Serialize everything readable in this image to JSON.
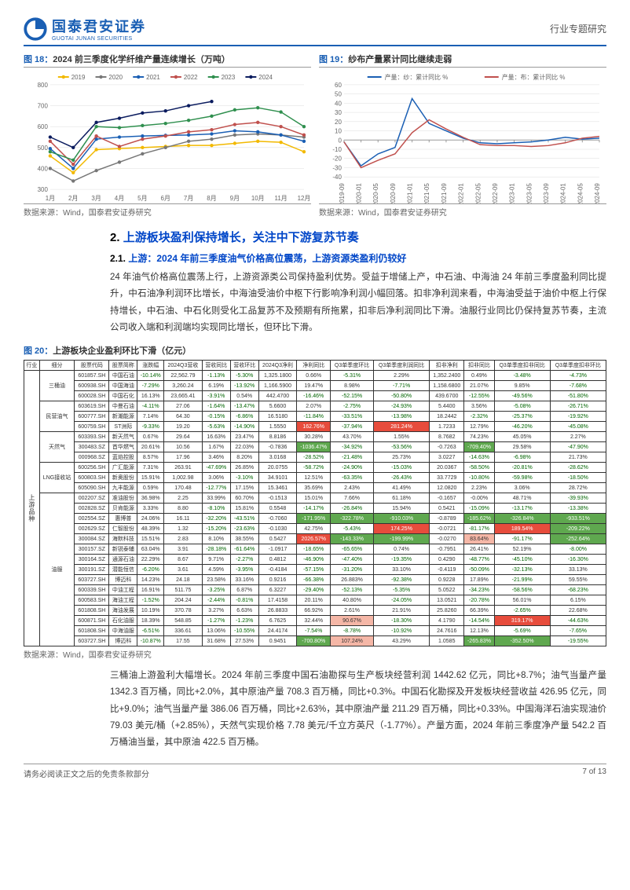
{
  "header": {
    "logo_cn": "国泰君安证券",
    "logo_en": "GUOTAI JUNAN SECURITIES",
    "right": "行业专题研究"
  },
  "fig18": {
    "title_prefix": "图 18：",
    "title": "2024 前三季度化学纤维产量连续增长（万吨）",
    "type": "line",
    "x_labels": [
      "1月",
      "2月",
      "3月",
      "4月",
      "5月",
      "6月",
      "7月",
      "8月",
      "9月",
      "10月",
      "11月",
      "12月"
    ],
    "y_min": 300,
    "y_max": 800,
    "y_step": 100,
    "series": [
      {
        "name": "2019",
        "color": "#f2b900",
        "values": [
          460,
          380,
          490,
          495,
          500,
          505,
          510,
          510,
          520,
          530,
          525,
          480
        ]
      },
      {
        "name": "2020",
        "color": "#777777",
        "values": [
          400,
          340,
          390,
          430,
          470,
          500,
          530,
          540,
          560,
          565,
          560,
          550
        ]
      },
      {
        "name": "2021",
        "color": "#1a5fb4",
        "values": [
          495,
          400,
          540,
          550,
          555,
          558,
          560,
          565,
          580,
          575,
          560,
          530
        ]
      },
      {
        "name": "2022",
        "color": "#c0504d",
        "values": [
          530,
          420,
          555,
          505,
          540,
          555,
          575,
          585,
          610,
          620,
          600,
          560
        ]
      },
      {
        "name": "2023",
        "color": "#2f8f4e",
        "values": [
          480,
          440,
          600,
          595,
          605,
          615,
          630,
          650,
          680,
          690,
          670,
          600
        ]
      },
      {
        "name": "2024",
        "color": "#0a1b5e",
        "values": [
          550,
          500,
          620,
          640,
          665,
          675,
          700,
          720,
          null,
          null,
          null,
          null
        ]
      }
    ],
    "source": "数据来源：Wind，国泰君安证券研究"
  },
  "fig19": {
    "title_prefix": "图 19：",
    "title": "纱布产量累计同比继续走弱",
    "type": "line",
    "x_labels": [
      "2019-09",
      "2020-01",
      "2020-05",
      "2020-09",
      "2021-01",
      "2021-05",
      "2021-09",
      "2022-01",
      "2022-05",
      "2022-09",
      "2023-01",
      "2023-05",
      "2023-09",
      "2024-01",
      "2024-05",
      "2024-09"
    ],
    "y_min": -40,
    "y_max": 60,
    "y_step": 10,
    "series": [
      {
        "name": "产量：纱：累计同比 %",
        "color": "#1a5fb4",
        "values": [
          -2,
          -28,
          -15,
          -8,
          45,
          18,
          10,
          2,
          -3,
          -4,
          -3,
          -2,
          0,
          3,
          1,
          2
        ]
      },
      {
        "name": "产量：布：累计同比 %",
        "color": "#c0504d",
        "values": [
          -2,
          -30,
          -22,
          -15,
          8,
          22,
          12,
          3,
          -5,
          -6,
          -6,
          -7,
          -6,
          -3,
          2,
          4
        ]
      }
    ],
    "source": "数据来源：Wind，国泰君安证券研究"
  },
  "section2": {
    "num": "2.",
    "title": "上游板块盈利保持增长，关注中下游复苏节奏"
  },
  "section21": {
    "num": "2.1.",
    "title": "上游：2024 年前三季度油气价格高位震荡，上游资源类盈利仍较好"
  },
  "para1": "24 年油气价格高位震荡上行，上游资源类公司保持盈利优势。受益于增储上产，中石油、中海油 24 年前三季度盈利同比提升，中石油净利润环比增长，中海油受油价中枢下行影响净利润小幅回落。扣非净利润来看，中海油受益于油价中枢上行保持增长，中石油、中石化则受化工品复苏不及预期有所拖累，扣非后净利润同比下滑。油服行业同比仍保持复苏节奏，主流公司收入端和利润端均实现同比增长，但环比下滑。",
  "fig20": {
    "title_prefix": "图 20：",
    "title": "上游板块企业盈利环比下滑（亿元）",
    "source": "数据来源：Wind，国泰君安证券研究",
    "columns": [
      "行业",
      "细分",
      "股票代码",
      "股票简称",
      "涨跌幅",
      "2024Q3营收",
      "营收同比",
      "营收环比",
      "2024Q3净利",
      "净利同比",
      "Q3单季度环比",
      "Q3单季度利润同比",
      "扣非净利",
      "扣非同比",
      "Q3单季度扣非同比",
      "Q3单季度扣非环比"
    ],
    "group_label": "上游品种",
    "subgroups": [
      {
        "name": "三桶油",
        "rows": [
          [
            "601857.SH",
            "中国石油",
            "-10.14%",
            "22,562.79",
            "-1.13%",
            "-5.30%",
            "1,325.1800",
            "0.66%",
            "-5.31%",
            "2.29%",
            "1,352.2400",
            "0.49%",
            "-3.48%",
            "-4.73%"
          ],
          [
            "600938.SH",
            "中国海油",
            "-7.29%",
            "3,260.24",
            "6.19%",
            "-13.92%",
            "1,166.5900",
            "19.47%",
            "8.98%",
            "-7.71%",
            "1,158.6800",
            "21.07%",
            "9.85%",
            "-7.68%"
          ],
          [
            "600028.SH",
            "中国石化",
            "16.13%",
            "23,665.41",
            "-3.91%",
            "0.54%",
            "442.4700",
            "-16.46%",
            "-52.15%",
            "-50.80%",
            "439.6700",
            "-12.55%",
            "-49.56%",
            "-51.80%"
          ]
        ]
      },
      {
        "name": "民营油气",
        "rows": [
          [
            "603619.SH",
            "中曼石油",
            "-4.11%",
            "27.06",
            "-1.64%",
            "-13.47%",
            "5.6600",
            "2.07%",
            "-2.75%",
            "-24.93%",
            "5.4400",
            "3.56%",
            "-5.08%",
            "-26.71%"
          ],
          [
            "600777.SH",
            "新潮能源",
            "7.14%",
            "64.30",
            "-0.15%",
            "-6.86%",
            "16.5180",
            "-11.84%",
            "-33.51%",
            "-13.98%",
            "18.2442",
            "-2.32%",
            "-25.37%",
            "-19.92%"
          ],
          [
            "600759.SH",
            "ST洲际",
            "-9.33%",
            "19.20",
            "-5.63%",
            "-14.90%",
            "1.5550",
            "162.76%",
            "-37.94%",
            "281.24%",
            "1.7233",
            "12.79%",
            "-46.20%",
            "-45.08%"
          ]
        ]
      },
      {
        "name": "天然气",
        "rows": [
          [
            "603393.SH",
            "新天然气",
            "0.67%",
            "29.64",
            "16.63%",
            "23.47%",
            "8.8186",
            "30.28%",
            "43.70%",
            "1.55%",
            "8.7682",
            "74.23%",
            "45.05%",
            "2.27%"
          ],
          [
            "300483.SZ",
            "首华燃气",
            "20.61%",
            "10.56",
            "1.67%",
            "22.03%",
            "-0.7836",
            "-1036.47%",
            "-34.92%",
            "-53.56%",
            "-0.7263",
            "-709.40%",
            "29.58%",
            "-47.90%"
          ],
          [
            "000968.SZ",
            "蓝焰控股",
            "8.57%",
            "17.96",
            "3.46%",
            "8.20%",
            "3.0168",
            "-28.52%",
            "-21.48%",
            "25.73%",
            "3.0227",
            "-14.63%",
            "-6.98%",
            "21.73%"
          ]
        ]
      },
      {
        "name": "LNG接收站",
        "rows": [
          [
            "600256.SH",
            "广汇能源",
            "7.31%",
            "263.91",
            "-47.69%",
            "26.85%",
            "20.0755",
            "-58.72%",
            "-24.90%",
            "-15.03%",
            "20.0367",
            "-58.50%",
            "-20.81%",
            "-28.62%"
          ],
          [
            "600803.SH",
            "新奥股份",
            "15.91%",
            "1,002.98",
            "3.06%",
            "-3.10%",
            "34.9101",
            "12.51%",
            "-63.35%",
            "-26.43%",
            "33.7729",
            "-10.80%",
            "-59.98%",
            "-18.50%"
          ],
          [
            "605090.SH",
            "九丰能源",
            "0.59%",
            "170.48",
            "-12.77%",
            "17.15%",
            "15.3461",
            "35.69%",
            "2.43%",
            "41.49%",
            "12.0820",
            "2.23%",
            "3.06%",
            "28.72%"
          ]
        ]
      },
      {
        "name": "油服",
        "rows": [
          [
            "002207.SZ",
            "准油股份",
            "36.98%",
            "2.25",
            "33.99%",
            "60.70%",
            "-0.1513",
            "15.01%",
            "7.66%",
            "61.18%",
            "-0.1657",
            "-0.00%",
            "48.71%",
            "-39.93%"
          ],
          [
            "002828.SZ",
            "贝肯能源",
            "3.33%",
            "8.80",
            "-8.10%",
            "15.81%",
            "0.5548",
            "-14.17%",
            "-26.84%",
            "15.94%",
            "0.5421",
            "-15.09%",
            "-13.17%",
            "-13.38%"
          ],
          [
            "002554.SZ",
            "惠博普",
            "24.06%",
            "16.11",
            "-32.20%",
            "-43.51%",
            "-0.7060",
            "-171.95%",
            "-322.78%",
            "-910.03%",
            "-0.8789",
            "-185.62%",
            "-326.84%",
            "-933.51%"
          ],
          [
            "002629.SZ",
            "仁智股份",
            "48.39%",
            "1.32",
            "-15.20%",
            "-23.63%",
            "-0.1030",
            "42.75%",
            "-5.43%",
            "174.25%",
            "-0.0721",
            "-81.17%",
            "189.54%",
            "-209.22%"
          ],
          [
            "300084.SZ",
            "海默科技",
            "15.51%",
            "2.83",
            "8.10%",
            "38.55%",
            "0.5427",
            "2026.57%",
            "-143.33%",
            "-199.99%",
            "-0.0270",
            "83.64%",
            "-91.17%",
            "-252.64%"
          ],
          [
            "300157.SZ",
            "新锐泰辅",
            "63.04%",
            "3.91",
            "-28.18%",
            "-61.64%",
            "-1.0917",
            "-18.65%",
            "-65.65%",
            "0.74%",
            "-0.7951",
            "26.41%",
            "52.19%",
            "-8.00%"
          ],
          [
            "300164.SZ",
            "通源石油",
            "22.29%",
            "8.67",
            "9.71%",
            "-2.27%",
            "0.4812",
            "-46.90%",
            "-47.40%",
            "-19.35%",
            "0.4290",
            "-48.77%",
            "-45.10%",
            "-16.30%"
          ],
          [
            "300191.SZ",
            "潜能恒信",
            "-6.20%",
            "3.61",
            "4.59%",
            "-3.95%",
            "-0.4184",
            "-57.15%",
            "-31.20%",
            "33.10%",
            "-0.4119",
            "-50.09%",
            "-32.13%",
            "33.13%"
          ],
          [
            "603727.SH",
            "博迈科",
            "14.23%",
            "24.18",
            "23.58%",
            "33.16%",
            "0.9216",
            "-66.38%",
            "26.883%",
            "-92.38%",
            "0.9228",
            "17.89%",
            "-21.99%",
            "59.55%"
          ],
          [
            "600339.SH",
            "中油工程",
            "16.91%",
            "511.75",
            "-3.25%",
            "6.87%",
            "6.3227",
            "-29.40%",
            "-52.13%",
            "-5.35%",
            "5.0522",
            "-34.23%",
            "-58.56%",
            "-68.23%"
          ],
          [
            "600583.SH",
            "海油工程",
            "-1.52%",
            "204.24",
            "-2.44%",
            "-0.81%",
            "17.4158",
            "20.11%",
            "40.80%",
            "-24.05%",
            "13.0521",
            "-20.78%",
            "56.01%",
            "6.15%"
          ],
          [
            "601808.SH",
            "海油发展",
            "10.19%",
            "370.78",
            "3.27%",
            "6.63%",
            "26.8833",
            "66.92%",
            "2.61%",
            "21.91%",
            "25.8260",
            "66.39%",
            "-2.65%",
            "22.68%"
          ],
          [
            "600871.SH",
            "石化油服",
            "18.39%",
            "548.85",
            "-1.27%",
            "-1.23%",
            "6.7625",
            "32.44%",
            "90.67%",
            "-18.30%",
            "4.1790",
            "-14.54%",
            "319.17%",
            "-44.63%"
          ],
          [
            "601808.SH",
            "中海油服",
            "-6.51%",
            "336.61",
            "13.06%",
            "-10.55%",
            "24.4174",
            "-7.54%",
            "-8.78%",
            "-10.92%",
            "24.7616",
            "12.13%",
            "-5.69%",
            "-7.65%"
          ],
          [
            "603727.SH",
            "博迈科",
            "-10.87%",
            "17.55",
            "31.68%",
            "27.53%",
            "0.9451",
            "-700.80%",
            "107.24%",
            "43.29%",
            "1.0585",
            "-265.83%",
            "-352.50%",
            "-19.55%"
          ]
        ]
      }
    ]
  },
  "para2": "三桶油上游盈利大幅增长。2024 年前三季度中国石油勘探与生产板块经营利润 1442.62 亿元，同比+8.7%；油气当量产量 1342.3 百万桶，同比+2.0%，其中原油产量 708.3 百万桶，同比+0.3%。中国石化勘探及开发板块经营收益 426.95 亿元，同比+9.0%；油气当量产量 386.06 百万桶，同比+2.63%，其中原油产量 211.29 百万桶，同比+0.33%。中国海洋石油实现油价 79.03 美元/桶（+2.85%），天然气实现价格 7.78 美元/千立方英尺（-1.77%）。产量方面，2024 年前三季度净产量 542.2 百万桶油当量，其中原油 422.5 百万桶。",
  "footer": {
    "left": "请务必阅读正文之后的免责条款部分",
    "right": "7 of 13"
  }
}
